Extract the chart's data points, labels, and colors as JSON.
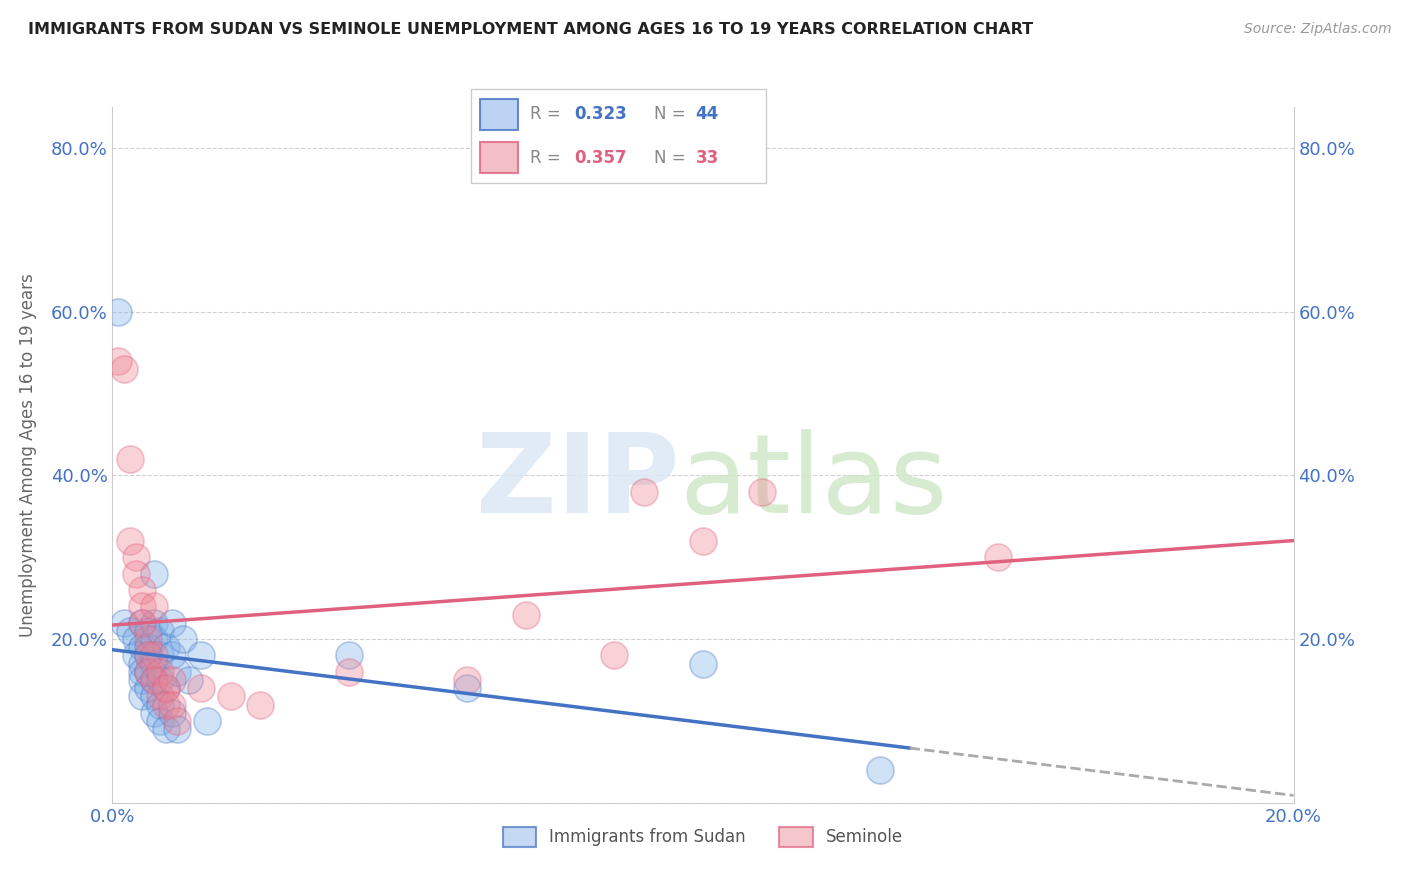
{
  "title": "IMMIGRANTS FROM SUDAN VS SEMINOLE UNEMPLOYMENT AMONG AGES 16 TO 19 YEARS CORRELATION CHART",
  "source": "Source: ZipAtlas.com",
  "ylabel": "Unemployment Among Ages 16 to 19 years",
  "xlim": [
    0.0,
    0.2
  ],
  "ylim": [
    0.0,
    0.85
  ],
  "xticks": [
    0.0,
    0.04,
    0.08,
    0.12,
    0.16,
    0.2
  ],
  "yticks": [
    0.0,
    0.2,
    0.4,
    0.6,
    0.8
  ],
  "sudan_R": "0.323",
  "sudan_N": "44",
  "seminole_R": "0.357",
  "seminole_N": "33",
  "sudan_points": [
    [
      0.001,
      0.6
    ],
    [
      0.002,
      0.22
    ],
    [
      0.003,
      0.21
    ],
    [
      0.004,
      0.2
    ],
    [
      0.004,
      0.18
    ],
    [
      0.005,
      0.22
    ],
    [
      0.005,
      0.19
    ],
    [
      0.005,
      0.17
    ],
    [
      0.005,
      0.16
    ],
    [
      0.005,
      0.15
    ],
    [
      0.005,
      0.13
    ],
    [
      0.006,
      0.21
    ],
    [
      0.006,
      0.19
    ],
    [
      0.006,
      0.18
    ],
    [
      0.006,
      0.16
    ],
    [
      0.006,
      0.14
    ],
    [
      0.007,
      0.28
    ],
    [
      0.007,
      0.22
    ],
    [
      0.007,
      0.2
    ],
    [
      0.007,
      0.17
    ],
    [
      0.007,
      0.15
    ],
    [
      0.007,
      0.13
    ],
    [
      0.007,
      0.11
    ],
    [
      0.008,
      0.21
    ],
    [
      0.008,
      0.18
    ],
    [
      0.008,
      0.15
    ],
    [
      0.008,
      0.12
    ],
    [
      0.008,
      0.1
    ],
    [
      0.009,
      0.19
    ],
    [
      0.009,
      0.14
    ],
    [
      0.009,
      0.09
    ],
    [
      0.01,
      0.22
    ],
    [
      0.01,
      0.18
    ],
    [
      0.01,
      0.11
    ],
    [
      0.011,
      0.16
    ],
    [
      0.011,
      0.09
    ],
    [
      0.012,
      0.2
    ],
    [
      0.013,
      0.15
    ],
    [
      0.015,
      0.18
    ],
    [
      0.016,
      0.1
    ],
    [
      0.04,
      0.18
    ],
    [
      0.06,
      0.14
    ],
    [
      0.1,
      0.17
    ],
    [
      0.13,
      0.04
    ]
  ],
  "seminole_points": [
    [
      0.001,
      0.54
    ],
    [
      0.002,
      0.53
    ],
    [
      0.003,
      0.42
    ],
    [
      0.003,
      0.32
    ],
    [
      0.004,
      0.3
    ],
    [
      0.004,
      0.28
    ],
    [
      0.005,
      0.26
    ],
    [
      0.005,
      0.24
    ],
    [
      0.005,
      0.22
    ],
    [
      0.006,
      0.2
    ],
    [
      0.006,
      0.18
    ],
    [
      0.006,
      0.16
    ],
    [
      0.007,
      0.24
    ],
    [
      0.007,
      0.18
    ],
    [
      0.007,
      0.15
    ],
    [
      0.008,
      0.16
    ],
    [
      0.008,
      0.13
    ],
    [
      0.009,
      0.14
    ],
    [
      0.009,
      0.12
    ],
    [
      0.01,
      0.15
    ],
    [
      0.01,
      0.12
    ],
    [
      0.011,
      0.1
    ],
    [
      0.015,
      0.14
    ],
    [
      0.02,
      0.13
    ],
    [
      0.025,
      0.12
    ],
    [
      0.04,
      0.16
    ],
    [
      0.06,
      0.15
    ],
    [
      0.07,
      0.23
    ],
    [
      0.085,
      0.18
    ],
    [
      0.09,
      0.38
    ],
    [
      0.1,
      0.32
    ],
    [
      0.11,
      0.38
    ],
    [
      0.15,
      0.3
    ]
  ],
  "sudan_line_color": "#4472c4",
  "seminole_line_color": "#e06080",
  "sudan_scatter_color": "#7aaee8",
  "seminole_scatter_color": "#f08090",
  "dashed_color": "#aaaaaa",
  "background_color": "#ffffff",
  "grid_color": "#cccccc"
}
